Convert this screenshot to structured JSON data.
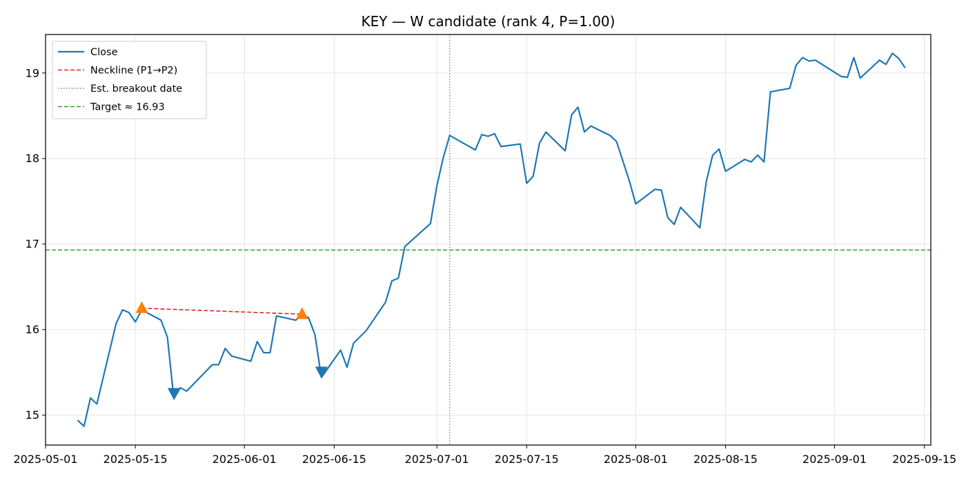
{
  "chart_data": {
    "type": "line",
    "title": "KEY — W candidate (rank 4, P=1.00)",
    "xlabel": "",
    "ylabel": "",
    "grid": true,
    "legend_position": "top-left",
    "x_axis": {
      "type": "date",
      "range": [
        "2025-05-01",
        "2025-09-16"
      ],
      "ticks": [
        "2025-05-01",
        "2025-05-15",
        "2025-06-01",
        "2025-06-15",
        "2025-07-01",
        "2025-07-15",
        "2025-08-01",
        "2025-08-15",
        "2025-09-01",
        "2025-09-15"
      ]
    },
    "y_axis": {
      "range": [
        14.65,
        19.45
      ],
      "ticks": [
        15,
        16,
        17,
        18,
        19
      ]
    },
    "series": [
      {
        "name": "Close",
        "color": "#1f77b4",
        "style": "solid",
        "points": [
          [
            "2025-05-06",
            14.94
          ],
          [
            "2025-05-07",
            14.87
          ],
          [
            "2025-05-08",
            15.2
          ],
          [
            "2025-05-09",
            15.13
          ],
          [
            "2025-05-12",
            16.07
          ],
          [
            "2025-05-13",
            16.23
          ],
          [
            "2025-05-14",
            16.2
          ],
          [
            "2025-05-15",
            16.09
          ],
          [
            "2025-05-16",
            16.23
          ],
          [
            "2025-05-19",
            16.11
          ],
          [
            "2025-05-20",
            15.91
          ],
          [
            "2025-05-21",
            15.19
          ],
          [
            "2025-05-22",
            15.32
          ],
          [
            "2025-05-23",
            15.28
          ],
          [
            "2025-05-27",
            15.59
          ],
          [
            "2025-05-28",
            15.59
          ],
          [
            "2025-05-29",
            15.78
          ],
          [
            "2025-05-30",
            15.69
          ],
          [
            "2025-06-02",
            15.63
          ],
          [
            "2025-06-03",
            15.86
          ],
          [
            "2025-06-04",
            15.73
          ],
          [
            "2025-06-05",
            15.73
          ],
          [
            "2025-06-06",
            16.16
          ],
          [
            "2025-06-09",
            16.11
          ],
          [
            "2025-06-10",
            16.17
          ],
          [
            "2025-06-11",
            16.14
          ],
          [
            "2025-06-12",
            15.94
          ],
          [
            "2025-06-13",
            15.44
          ],
          [
            "2025-06-16",
            15.76
          ],
          [
            "2025-06-17",
            15.56
          ],
          [
            "2025-06-18",
            15.84
          ],
          [
            "2025-06-20",
            15.99
          ],
          [
            "2025-06-23",
            16.32
          ],
          [
            "2025-06-24",
            16.57
          ],
          [
            "2025-06-25",
            16.6
          ],
          [
            "2025-06-26",
            16.97
          ],
          [
            "2025-06-30",
            17.24
          ],
          [
            "2025-07-01",
            17.68
          ],
          [
            "2025-07-02",
            18.01
          ],
          [
            "2025-07-03",
            18.27
          ],
          [
            "2025-07-07",
            18.1
          ],
          [
            "2025-07-08",
            18.28
          ],
          [
            "2025-07-09",
            18.26
          ],
          [
            "2025-07-10",
            18.29
          ],
          [
            "2025-07-11",
            18.14
          ],
          [
            "2025-07-14",
            18.17
          ],
          [
            "2025-07-15",
            17.71
          ],
          [
            "2025-07-16",
            17.79
          ],
          [
            "2025-07-17",
            18.18
          ],
          [
            "2025-07-18",
            18.31
          ],
          [
            "2025-07-21",
            18.09
          ],
          [
            "2025-07-22",
            18.51
          ],
          [
            "2025-07-23",
            18.6
          ],
          [
            "2025-07-24",
            18.31
          ],
          [
            "2025-07-25",
            18.38
          ],
          [
            "2025-07-28",
            18.27
          ],
          [
            "2025-07-29",
            18.2
          ],
          [
            "2025-07-31",
            17.74
          ],
          [
            "2025-08-01",
            17.47
          ],
          [
            "2025-08-04",
            17.64
          ],
          [
            "2025-08-05",
            17.63
          ],
          [
            "2025-08-06",
            17.31
          ],
          [
            "2025-08-07",
            17.23
          ],
          [
            "2025-08-08",
            17.43
          ],
          [
            "2025-08-11",
            17.19
          ],
          [
            "2025-08-12",
            17.73
          ],
          [
            "2025-08-13",
            18.04
          ],
          [
            "2025-08-14",
            18.11
          ],
          [
            "2025-08-15",
            17.85
          ],
          [
            "2025-08-18",
            17.99
          ],
          [
            "2025-08-19",
            17.96
          ],
          [
            "2025-08-20",
            18.04
          ],
          [
            "2025-08-21",
            17.96
          ],
          [
            "2025-08-22",
            18.78
          ],
          [
            "2025-08-25",
            18.82
          ],
          [
            "2025-08-26",
            19.09
          ],
          [
            "2025-08-27",
            19.18
          ],
          [
            "2025-08-28",
            19.14
          ],
          [
            "2025-08-29",
            19.15
          ],
          [
            "2025-09-02",
            18.96
          ],
          [
            "2025-09-03",
            18.95
          ],
          [
            "2025-09-04",
            19.18
          ],
          [
            "2025-09-05",
            18.94
          ],
          [
            "2025-09-08",
            19.15
          ],
          [
            "2025-09-09",
            19.1
          ],
          [
            "2025-09-10",
            19.23
          ],
          [
            "2025-09-11",
            19.17
          ],
          [
            "2025-09-12",
            19.06
          ]
        ]
      },
      {
        "name": "Neckline (P1→P2)",
        "color": "#d62728",
        "style": "dashed",
        "points": [
          [
            "2025-05-16",
            16.25
          ],
          [
            "2025-06-10",
            16.18
          ]
        ]
      },
      {
        "name": "Est. breakout date",
        "color": "#7f7f7f",
        "style": "dotted",
        "vertical_x": "2025-07-03"
      },
      {
        "name": "Target ≈ 16.93",
        "color": "#2ca02c",
        "style": "dashed",
        "horizontal_y": 16.93
      }
    ],
    "markers": [
      {
        "kind": "peak",
        "shape": "triangle-up",
        "color": "#ff7f0e",
        "x": "2025-05-16",
        "y": 16.25
      },
      {
        "kind": "peak",
        "shape": "triangle-up",
        "color": "#ff7f0e",
        "x": "2025-06-10",
        "y": 16.18
      },
      {
        "kind": "trough",
        "shape": "triangle-down",
        "color": "#1f77b4",
        "x": "2025-05-21",
        "y": 15.26
      },
      {
        "kind": "trough",
        "shape": "triangle-down",
        "color": "#1f77b4",
        "x": "2025-06-13",
        "y": 15.51
      }
    ]
  }
}
